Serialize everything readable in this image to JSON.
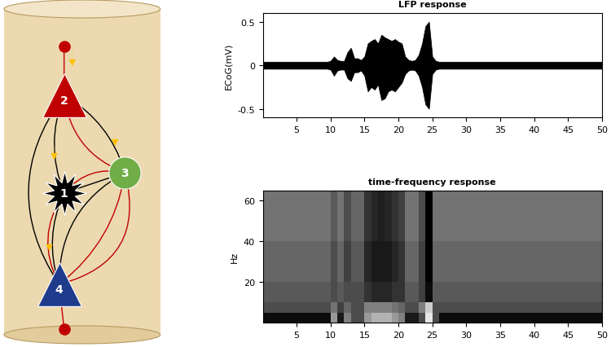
{
  "diagram": {
    "nodes": [
      {
        "label": "1",
        "color": "#000000",
        "marker": "star"
      },
      {
        "label": "2",
        "color": "#c00000",
        "marker": "triangle"
      },
      {
        "label": "3",
        "color": "#70ad47",
        "marker": "circle"
      },
      {
        "label": "4",
        "color": "#1f3b8c",
        "marker": "triangle"
      }
    ]
  },
  "chart_data": [
    {
      "type": "area",
      "title": "LFP response",
      "y_label": "ECoG(mV)",
      "color": "#000000",
      "x": [
        0,
        0.5,
        1,
        1.5,
        2,
        2.5,
        3,
        3.5,
        4,
        4.5,
        5,
        5.5,
        6,
        6.5,
        7,
        7.5,
        8,
        8.5,
        9,
        9.5,
        10,
        10.5,
        11,
        11.5,
        12,
        12.5,
        13,
        13.5,
        14,
        14.5,
        15,
        15.5,
        16,
        16.5,
        17,
        17.5,
        18,
        18.5,
        19,
        19.5,
        20,
        20.5,
        21,
        21.5,
        22,
        22.5,
        23,
        23.5,
        24,
        24.5,
        25,
        25.5,
        26,
        26.5,
        27,
        27.5,
        28,
        28.5,
        29,
        29.5,
        30,
        30.5,
        31,
        31.5,
        32,
        32.5,
        33,
        33.5,
        34,
        34.5,
        35,
        35.5,
        36,
        36.5,
        37,
        37.5,
        38,
        38.5,
        39,
        39.5,
        40,
        40.5,
        41,
        41.5,
        42,
        42.5,
        43,
        43.5,
        44,
        44.5,
        45,
        45.5,
        46,
        46.5,
        47,
        47.5,
        48,
        48.5,
        49,
        49.5,
        50
      ],
      "upper": [
        0.04,
        0.04,
        0.04,
        0.04,
        0.04,
        0.04,
        0.04,
        0.04,
        0.04,
        0.04,
        0.04,
        0.04,
        0.04,
        0.04,
        0.04,
        0.04,
        0.04,
        0.04,
        0.04,
        0.04,
        0.05,
        0.1,
        0.06,
        0.05,
        0.05,
        0.15,
        0.2,
        0.08,
        0.08,
        0.06,
        0.1,
        0.25,
        0.28,
        0.3,
        0.25,
        0.35,
        0.32,
        0.3,
        0.28,
        0.3,
        0.27,
        0.25,
        0.1,
        0.06,
        0.05,
        0.06,
        0.12,
        0.25,
        0.45,
        0.5,
        0.1,
        0.05,
        0.04,
        0.04,
        0.04,
        0.04,
        0.04,
        0.04,
        0.04,
        0.04,
        0.04,
        0.04,
        0.04,
        0.04,
        0.04,
        0.04,
        0.04,
        0.04,
        0.04,
        0.04,
        0.04,
        0.04,
        0.04,
        0.04,
        0.04,
        0.04,
        0.04,
        0.04,
        0.04,
        0.04,
        0.04,
        0.04,
        0.04,
        0.04,
        0.04,
        0.04,
        0.04,
        0.04,
        0.04,
        0.04,
        0.04,
        0.04,
        0.04,
        0.04,
        0.04,
        0.04,
        0.04,
        0.04,
        0.04,
        0.04,
        0.04
      ],
      "lower": [
        -0.04,
        -0.04,
        -0.04,
        -0.04,
        -0.04,
        -0.04,
        -0.04,
        -0.04,
        -0.04,
        -0.04,
        -0.04,
        -0.04,
        -0.04,
        -0.04,
        -0.04,
        -0.04,
        -0.04,
        -0.04,
        -0.04,
        -0.04,
        -0.05,
        -0.12,
        -0.06,
        -0.05,
        -0.05,
        -0.15,
        -0.18,
        -0.08,
        -0.08,
        -0.06,
        -0.12,
        -0.3,
        -0.25,
        -0.28,
        -0.22,
        -0.4,
        -0.38,
        -0.3,
        -0.28,
        -0.3,
        -0.25,
        -0.2,
        -0.1,
        -0.06,
        -0.05,
        -0.06,
        -0.12,
        -0.25,
        -0.45,
        -0.5,
        -0.1,
        -0.05,
        -0.04,
        -0.04,
        -0.04,
        -0.04,
        -0.04,
        -0.04,
        -0.04,
        -0.04,
        -0.04,
        -0.04,
        -0.04,
        -0.04,
        -0.04,
        -0.04,
        -0.04,
        -0.04,
        -0.04,
        -0.04,
        -0.04,
        -0.04,
        -0.04,
        -0.04,
        -0.04,
        -0.04,
        -0.04,
        -0.04,
        -0.04,
        -0.04,
        -0.04,
        -0.04,
        -0.04,
        -0.04,
        -0.04,
        -0.04,
        -0.04,
        -0.04,
        -0.04,
        -0.04,
        -0.04,
        -0.04,
        -0.04,
        -0.04,
        -0.04,
        -0.04,
        -0.04,
        -0.04,
        -0.04,
        -0.04,
        -0.04
      ],
      "xlim": [
        0,
        50
      ],
      "xticks": [
        5,
        10,
        15,
        20,
        25,
        30,
        35,
        40,
        45,
        50
      ],
      "ylim": [
        -0.6,
        0.6
      ],
      "yticks": [
        -0.5,
        0,
        0.5
      ]
    },
    {
      "type": "heatmap",
      "title": "time-frequency response",
      "y_label": "Hz",
      "x_edges": [
        0,
        10,
        11,
        12,
        13,
        15,
        16,
        17,
        18,
        19,
        20,
        21,
        23,
        24,
        25,
        26,
        30,
        35,
        40,
        45,
        50
      ],
      "y_edges": [
        0,
        5,
        10,
        20,
        40,
        65
      ],
      "cells": [
        [
          0.05,
          0.6,
          0.1,
          0.5,
          0.3,
          0.6,
          0.7,
          0.7,
          0.7,
          0.6,
          0.5,
          0.1,
          0.3,
          0.9,
          0.3,
          0.05,
          0.05,
          0.05,
          0.05,
          0.05
        ],
        [
          0.3,
          0.45,
          0.25,
          0.4,
          0.3,
          0.5,
          0.5,
          0.5,
          0.5,
          0.45,
          0.4,
          0.3,
          0.5,
          0.8,
          0.3,
          0.3,
          0.3,
          0.3,
          0.3,
          0.3
        ],
        [
          0.35,
          0.3,
          0.35,
          0.3,
          0.3,
          0.2,
          0.15,
          0.15,
          0.15,
          0.2,
          0.2,
          0.35,
          0.25,
          0.05,
          0.35,
          0.35,
          0.35,
          0.35,
          0.35,
          0.35
        ],
        [
          0.4,
          0.3,
          0.4,
          0.25,
          0.35,
          0.15,
          0.1,
          0.1,
          0.1,
          0.15,
          0.2,
          0.4,
          0.25,
          0.0,
          0.4,
          0.4,
          0.4,
          0.4,
          0.4,
          0.4
        ],
        [
          0.45,
          0.35,
          0.45,
          0.3,
          0.4,
          0.2,
          0.15,
          0.12,
          0.15,
          0.2,
          0.25,
          0.45,
          0.3,
          0.0,
          0.45,
          0.45,
          0.45,
          0.45,
          0.45,
          0.45
        ]
      ],
      "color_range": [
        0,
        1
      ],
      "xlim": [
        0,
        50
      ],
      "xticks": [
        5,
        10,
        15,
        20,
        25,
        30,
        35,
        40,
        45,
        50
      ],
      "ylim": [
        0,
        65
      ],
      "yticks": [
        20,
        40,
        60
      ]
    }
  ]
}
